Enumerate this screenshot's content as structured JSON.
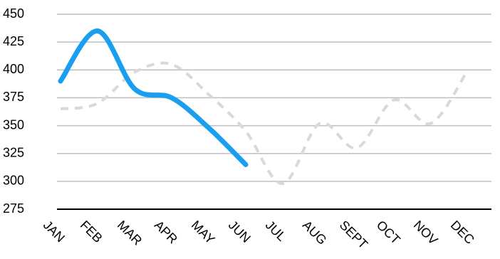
{
  "chart_data": {
    "type": "line",
    "categories": [
      "JAN",
      "FEB",
      "MAR",
      "APR",
      "MAY",
      "JUN",
      "JUL",
      "AUG",
      "SEPT",
      "OCT",
      "NOV",
      "DEC"
    ],
    "series": [
      {
        "color": "#d9d9d9",
        "line_style": "dashed",
        "values": [
          365,
          370,
          398,
          405,
          378,
          345,
          298,
          352,
          330,
          373,
          352,
          400
        ]
      },
      {
        "color": "#1a9ff0",
        "line_style": "solid",
        "values": [
          390,
          435,
          383,
          375,
          348,
          315,
          null,
          null,
          null,
          null,
          null,
          null
        ]
      }
    ],
    "ylim": [
      275,
      450
    ],
    "yticks": [
      275,
      300,
      325,
      350,
      375,
      400,
      425,
      450
    ],
    "grid": true,
    "smooth": true
  }
}
